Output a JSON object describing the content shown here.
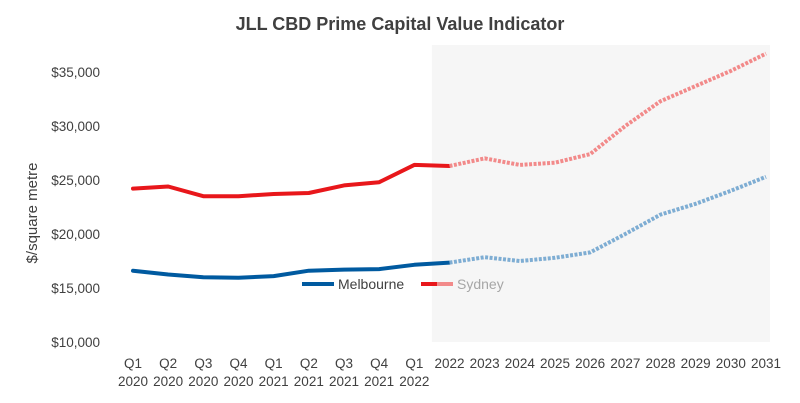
{
  "chart_data": {
    "type": "line",
    "title": "JLL CBD Prime Capital Value Indicator",
    "xlabel": "",
    "ylabel": "$/square metre",
    "ylim": [
      10000,
      37500
    ],
    "yticks": [
      "$10,000",
      "$15,000",
      "$20,000",
      "$25,000",
      "$30,000",
      "$35,000"
    ],
    "ytick_values": [
      10000,
      15000,
      20000,
      25000,
      30000,
      35000
    ],
    "categories": [
      [
        "Q1",
        "2020"
      ],
      [
        "Q2",
        "2020"
      ],
      [
        "Q3",
        "2020"
      ],
      [
        "Q4",
        "2020"
      ],
      [
        "Q1",
        "2021"
      ],
      [
        "Q2",
        "2021"
      ],
      [
        "Q3",
        "2021"
      ],
      [
        "Q4",
        "2021"
      ],
      [
        "Q1",
        "2022"
      ],
      [
        "",
        "2022"
      ],
      [
        "",
        "2023"
      ],
      [
        "",
        "2024"
      ],
      [
        "",
        "2025"
      ],
      [
        "",
        "2026"
      ],
      [
        "",
        "2027"
      ],
      [
        "",
        "2028"
      ],
      [
        "",
        "2029"
      ],
      [
        "",
        "2030"
      ],
      [
        "",
        "2031"
      ]
    ],
    "forecast_start_index": 9,
    "grid": false,
    "legend_position": "center",
    "series": [
      {
        "name": "Melbourne",
        "color": "#005aa0",
        "forecast_color": "#7eadd3",
        "values": [
          16600,
          16250,
          16000,
          15950,
          16100,
          16600,
          16700,
          16750,
          17150,
          17350,
          17850,
          17500,
          17800,
          18300,
          20000,
          21800,
          22800,
          24000,
          25300
        ]
      },
      {
        "name": "Sydney",
        "color": "#e8171b",
        "forecast_color": "#f28a8a",
        "values": [
          24200,
          24400,
          23500,
          23500,
          23700,
          23800,
          24500,
          24800,
          26400,
          26300,
          27000,
          26400,
          26600,
          27400,
          30000,
          32300,
          33700,
          35100,
          36700
        ]
      }
    ]
  }
}
